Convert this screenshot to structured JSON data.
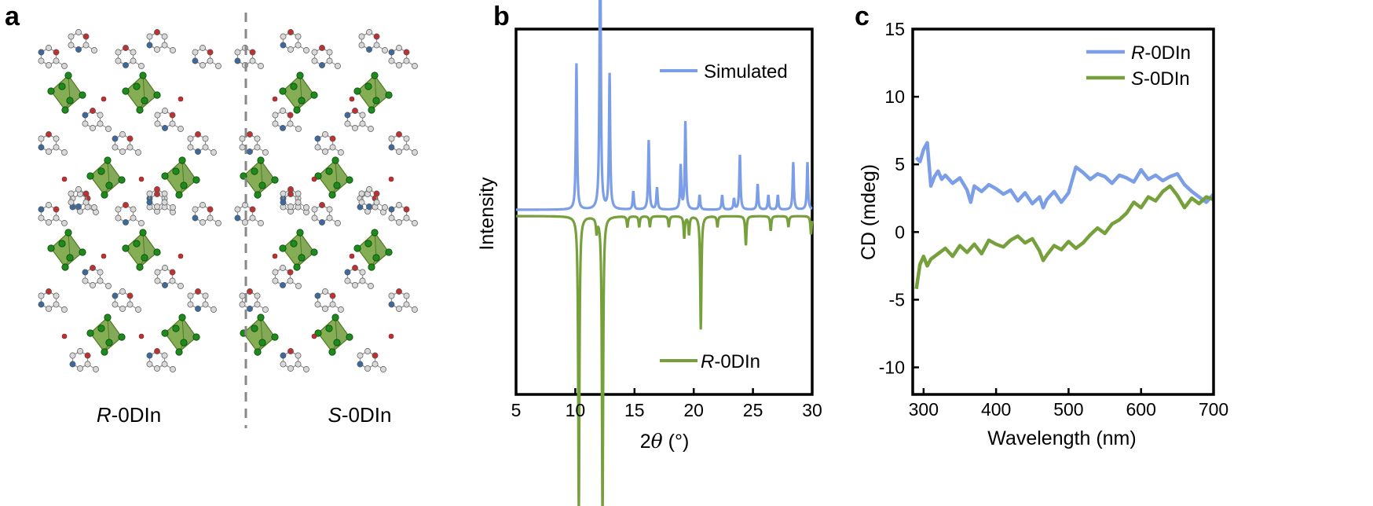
{
  "panels": {
    "a": "a",
    "b": "b",
    "c": "c"
  },
  "structure": {
    "left_caption": {
      "italic": "R",
      "rest": "-0DIn"
    },
    "right_caption": {
      "italic": "S",
      "rest": "-0DIn"
    },
    "colors": {
      "octahedron": "#6e9a3c",
      "halide": "#1e8a1e",
      "oxygen": "#c03030",
      "nitrogen": "#3a6aa0",
      "carbon": "#d8d8d8",
      "divider": "#888888"
    }
  },
  "chart_data": [
    {
      "panel": "b",
      "type": "line",
      "xlabel": {
        "prefix": "2",
        "symbol": "θ",
        "unit": " (°)"
      },
      "ylabel": "Intensity",
      "xlim": [
        5,
        30
      ],
      "xticks": [
        5,
        10,
        15,
        20,
        25,
        30
      ],
      "yticks_shown": false,
      "legend_placement": "inside, series labels next to traces",
      "series": [
        {
          "name": "Simulated",
          "color": "#7b9ee6",
          "direction": "up",
          "baseline_note": "upper trace",
          "peaks": [
            {
              "x": 10.1,
              "h": 0.4
            },
            {
              "x": 12.1,
              "h": 0.83
            },
            {
              "x": 12.9,
              "h": 0.37
            },
            {
              "x": 14.9,
              "h": 0.05
            },
            {
              "x": 16.2,
              "h": 0.19
            },
            {
              "x": 16.9,
              "h": 0.06
            },
            {
              "x": 18.9,
              "h": 0.12
            },
            {
              "x": 19.3,
              "h": 0.24
            },
            {
              "x": 20.5,
              "h": 0.04
            },
            {
              "x": 22.4,
              "h": 0.04
            },
            {
              "x": 23.4,
              "h": 0.03
            },
            {
              "x": 23.9,
              "h": 0.15
            },
            {
              "x": 25.4,
              "h": 0.07
            },
            {
              "x": 26.3,
              "h": 0.04
            },
            {
              "x": 27.1,
              "h": 0.04
            },
            {
              "x": 28.4,
              "h": 0.13
            },
            {
              "x": 29.6,
              "h": 0.13
            }
          ]
        },
        {
          "name_italic": "R",
          "name_rest": "-0DIn",
          "color": "#76a03c",
          "direction": "down",
          "baseline_note": "lower trace, inverted",
          "peaks": [
            {
              "x": 10.3,
              "h": 0.82
            },
            {
              "x": 12.3,
              "h": 0.84
            },
            {
              "x": 11.8,
              "h": 0.04
            },
            {
              "x": 14.4,
              "h": 0.03
            },
            {
              "x": 15.4,
              "h": 0.03
            },
            {
              "x": 16.3,
              "h": 0.03
            },
            {
              "x": 17.9,
              "h": 0.03
            },
            {
              "x": 19.2,
              "h": 0.06
            },
            {
              "x": 19.6,
              "h": 0.05
            },
            {
              "x": 20.6,
              "h": 0.31
            },
            {
              "x": 22.0,
              "h": 0.03
            },
            {
              "x": 24.4,
              "h": 0.08
            },
            {
              "x": 26.5,
              "h": 0.04
            },
            {
              "x": 28.0,
              "h": 0.03
            },
            {
              "x": 29.9,
              "h": 0.05
            }
          ]
        }
      ]
    },
    {
      "panel": "c",
      "type": "line",
      "xlabel": "Wavelength (nm)",
      "ylabel": "CD (mdeg)",
      "xlim": [
        285,
        700
      ],
      "ylim": [
        -12,
        15
      ],
      "xticks": [
        300,
        400,
        500,
        600,
        700
      ],
      "yticks": [
        -10,
        -5,
        0,
        5,
        10,
        15
      ],
      "legend_placement": "top-right",
      "series": [
        {
          "name_italic": "R",
          "name_rest": "-0DIn",
          "color": "#7b9ee6",
          "x": [
            290,
            295,
            300,
            305,
            310,
            315,
            320,
            325,
            330,
            340,
            350,
            360,
            365,
            370,
            380,
            390,
            400,
            410,
            420,
            430,
            440,
            450,
            460,
            465,
            470,
            480,
            490,
            500,
            510,
            520,
            530,
            540,
            550,
            560,
            570,
            580,
            590,
            600,
            610,
            620,
            630,
            640,
            650,
            660,
            670,
            680,
            690,
            700
          ],
          "y": [
            5.5,
            5.2,
            6.1,
            6.6,
            3.4,
            4.1,
            4.5,
            3.9,
            4.2,
            3.6,
            4.0,
            3.1,
            2.2,
            3.4,
            3.0,
            3.5,
            3.2,
            2.8,
            3.1,
            2.3,
            2.9,
            2.1,
            2.6,
            1.8,
            2.4,
            3.0,
            2.2,
            2.9,
            4.8,
            4.4,
            3.9,
            4.3,
            4.1,
            3.6,
            4.2,
            4.0,
            3.7,
            4.6,
            3.9,
            4.2,
            3.8,
            4.1,
            4.3,
            3.5,
            3.0,
            2.6,
            2.2,
            2.8
          ]
        },
        {
          "name_italic": "S",
          "name_rest": "-0DIn",
          "color": "#76a03c",
          "x": [
            290,
            295,
            300,
            305,
            310,
            320,
            330,
            340,
            350,
            360,
            370,
            380,
            390,
            400,
            410,
            420,
            430,
            440,
            450,
            460,
            465,
            470,
            480,
            490,
            500,
            510,
            520,
            530,
            540,
            550,
            560,
            570,
            580,
            590,
            600,
            610,
            620,
            630,
            640,
            650,
            660,
            670,
            680,
            690,
            700
          ],
          "y": [
            -4.2,
            -2.4,
            -1.8,
            -2.5,
            -2.0,
            -1.6,
            -1.2,
            -1.8,
            -1.0,
            -1.5,
            -0.9,
            -1.6,
            -0.6,
            -0.9,
            -1.1,
            -0.6,
            -0.3,
            -0.8,
            -0.5,
            -1.4,
            -2.1,
            -1.7,
            -1.0,
            -1.3,
            -0.7,
            -1.2,
            -0.8,
            -0.2,
            0.3,
            -0.1,
            0.6,
            0.9,
            1.4,
            2.2,
            1.8,
            2.6,
            2.3,
            3.0,
            3.4,
            2.7,
            1.8,
            2.5,
            2.1,
            2.6,
            2.4
          ]
        }
      ]
    }
  ]
}
